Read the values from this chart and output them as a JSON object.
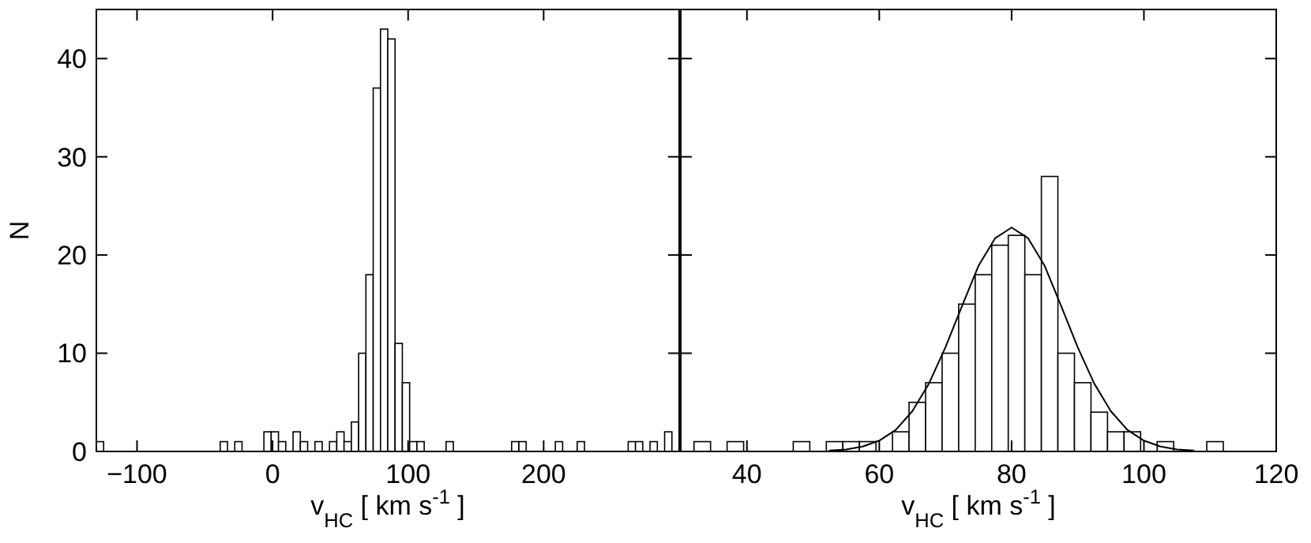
{
  "chart_data": [
    {
      "type": "histogram",
      "xlabel": "v$_{HC}$ [ km s$^{-1}$ ]",
      "ylabel": "N",
      "xlim": [
        -130,
        300
      ],
      "xticks": [
        -100,
        0,
        100,
        200
      ],
      "ylim": [
        0,
        45
      ],
      "yticks": [
        0,
        10,
        20,
        30,
        40
      ],
      "bins": [
        -130,
        -124.625,
        -119.25,
        -113.875,
        -108.5,
        -103.125,
        -97.75,
        -92.375,
        -87,
        -81.625,
        -76.25,
        -70.875,
        -65.5,
        -60.125,
        -54.75,
        -49.375,
        -44,
        -38.625,
        -33.25,
        -27.875,
        -22.5,
        -17.125,
        -11.75,
        -6.375,
        -1,
        4.375,
        9.75,
        15.125,
        20.5,
        25.875,
        31.25,
        36.625,
        42,
        47.375,
        52.75,
        58.125,
        63.5,
        68.875,
        74.25,
        79.625,
        85,
        90.375,
        95.75,
        101.125,
        106.5,
        111.875,
        117.25,
        122.625,
        128,
        133.375,
        138.75,
        144.125,
        149.5,
        154.875,
        160.25,
        165.625,
        171,
        176.375,
        181.75,
        187.125,
        192.5,
        197.875,
        203.25,
        208.625,
        214,
        219.375,
        224.75,
        230.125,
        235.5,
        240.875,
        246.25,
        251.625,
        257,
        262.375,
        267.75,
        273.125,
        278.5,
        283.875,
        289.25,
        294.625,
        300
      ],
      "values": [
        1,
        0,
        0,
        0,
        0,
        0,
        0,
        0,
        0,
        0,
        0,
        0,
        0,
        0,
        0,
        0,
        0,
        1,
        0,
        1,
        0,
        0,
        0,
        2,
        2,
        1,
        0,
        2,
        1,
        0,
        1,
        0,
        1,
        2,
        1,
        3,
        10,
        18,
        37,
        43,
        42,
        11,
        7,
        1,
        1,
        0,
        0,
        0,
        1,
        0,
        0,
        0,
        0,
        0,
        0,
        0,
        0,
        1,
        1,
        0,
        0,
        0,
        0,
        1,
        0,
        0,
        1,
        0,
        0,
        0,
        0,
        0,
        0,
        1,
        1,
        0,
        1,
        0,
        2,
        0
      ]
    },
    {
      "type": "histogram",
      "xlabel": "v$_{HC}$ [ km s$^{-1}$ ]",
      "xlim": [
        30,
        120
      ],
      "xticks": [
        40,
        60,
        80,
        100,
        120
      ],
      "ylim": [
        0,
        45
      ],
      "yticks": [
        0,
        10,
        20,
        30,
        40
      ],
      "tick_labels": "x",
      "series": [
        {
          "bins": [
            32,
            34.5,
            37,
            39.5,
            42,
            44.5,
            47,
            49.5,
            52,
            54.5,
            57,
            59.5,
            62,
            64.5,
            67,
            69.5,
            72,
            74.5,
            77,
            79.5,
            82,
            84.5,
            87,
            89.5,
            92,
            94.5,
            97,
            99.5,
            102,
            104.5,
            107,
            109.5,
            112
          ],
          "values": [
            1,
            0,
            1,
            0,
            0,
            0,
            1,
            0,
            1,
            1,
            1,
            0,
            2,
            5,
            7,
            10,
            15,
            18,
            21,
            22,
            18,
            28,
            10,
            7,
            4,
            2,
            2,
            0,
            1,
            0,
            0,
            1
          ]
        },
        {
          "type": "line",
          "x": [
            52.5,
            55,
            57.5,
            60,
            62.5,
            65,
            67.5,
            70,
            72.5,
            75,
            77.5,
            80,
            82.5,
            85,
            87.5,
            90,
            92.5,
            95,
            97.5,
            100,
            102.5,
            105,
            107.5
          ],
          "values": [
            0.1,
            0.2,
            0.5,
            1.1,
            2.2,
            4.1,
            6.9,
            10.6,
            14.8,
            18.9,
            21.7,
            22.8,
            21.7,
            18.9,
            14.8,
            10.6,
            6.9,
            4.1,
            2.2,
            1.1,
            0.5,
            0.2,
            0.1
          ]
        }
      ]
    }
  ]
}
